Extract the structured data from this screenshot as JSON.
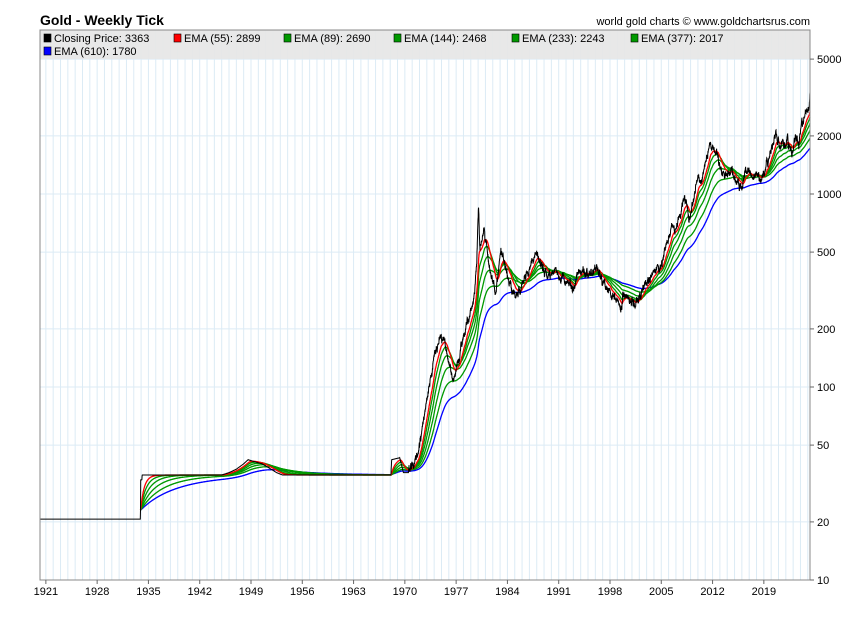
{
  "chart_data": {
    "type": "line",
    "title": "Gold - Weekly Tick",
    "credit": "world gold charts © www.goldchartsrus.com",
    "yscale": "log",
    "ylim": [
      10,
      7000
    ],
    "xlim": [
      1920.2,
      2025.3
    ],
    "grid": true,
    "legend_placement": "top",
    "y_ticks": [
      5000,
      2000,
      1000,
      500,
      200,
      100,
      50,
      20,
      10
    ],
    "x_ticks": [
      1921,
      1928,
      1935,
      1942,
      1949,
      1956,
      1963,
      1970,
      1977,
      1984,
      1991,
      1998,
      2005,
      2012,
      2019
    ],
    "legend": [
      {
        "label": "Closing Price: 3363",
        "color": "#000000"
      },
      {
        "label": "EMA (55): 2899",
        "color": "#ff0000"
      },
      {
        "label": "EMA (89): 2690",
        "color": "#009900"
      },
      {
        "label": "EMA (144): 2468",
        "color": "#009900"
      },
      {
        "label": "EMA (233): 2243",
        "color": "#009900"
      },
      {
        "label": "EMA (377): 2017",
        "color": "#009900"
      },
      {
        "label": "EMA (610): 1780",
        "color": "#0000ff"
      }
    ],
    "ema_periods": [
      55,
      89,
      144,
      233,
      377,
      610
    ],
    "ema_colors": [
      "#ff0000",
      "#009900",
      "#009900",
      "#009900",
      "#009900",
      "#0000ff"
    ],
    "ema_start_year": 1933.9,
    "closing_price_anchors": [
      [
        1920.2,
        20.67
      ],
      [
        1933.9,
        20.67
      ],
      [
        1933.95,
        33
      ],
      [
        1934.1,
        33
      ],
      [
        1934.15,
        35
      ],
      [
        1945,
        35
      ],
      [
        1946,
        36
      ],
      [
        1947,
        37.5
      ],
      [
        1948,
        40
      ],
      [
        1948.6,
        42
      ],
      [
        1949.5,
        41
      ],
      [
        1950.5,
        40
      ],
      [
        1951.5,
        38
      ],
      [
        1952.5,
        36
      ],
      [
        1953.3,
        35
      ],
      [
        1968.1,
        35
      ],
      [
        1968.2,
        42
      ],
      [
        1969.3,
        43
      ],
      [
        1969.8,
        36
      ],
      [
        1970.5,
        36
      ],
      [
        1971.4,
        41
      ],
      [
        1972.0,
        48
      ],
      [
        1972.5,
        65
      ],
      [
        1973.5,
        110
      ],
      [
        1974.1,
        150
      ],
      [
        1974.9,
        190
      ],
      [
        1975.5,
        165
      ],
      [
        1976.6,
        105
      ],
      [
        1977.5,
        150
      ],
      [
        1978.5,
        210
      ],
      [
        1979.4,
        280
      ],
      [
        1979.8,
        420
      ],
      [
        1980.05,
        850
      ],
      [
        1980.25,
        520
      ],
      [
        1980.8,
        650
      ],
      [
        1981.5,
        420
      ],
      [
        1982.4,
        310
      ],
      [
        1983.1,
        500
      ],
      [
        1984.0,
        380
      ],
      [
        1985.1,
        290
      ],
      [
        1985.9,
        330
      ],
      [
        1987.9,
        490
      ],
      [
        1988.6,
        430
      ],
      [
        1989.6,
        360
      ],
      [
        1990.6,
        410
      ],
      [
        1991.5,
        360
      ],
      [
        1993.1,
        330
      ],
      [
        1993.6,
        400
      ],
      [
        1995.0,
        380
      ],
      [
        1996.1,
        410
      ],
      [
        1997.2,
        340
      ],
      [
        1998.8,
        290
      ],
      [
        1999.6,
        255
      ],
      [
        1999.8,
        320
      ],
      [
        2001.3,
        260
      ],
      [
        2002.5,
        320
      ],
      [
        2004.0,
        410
      ],
      [
        2005.0,
        430
      ],
      [
        2006.4,
        700
      ],
      [
        2007.0,
        650
      ],
      [
        2008.2,
        980
      ],
      [
        2008.8,
        720
      ],
      [
        2009.9,
        1200
      ],
      [
        2010.5,
        1200
      ],
      [
        2011.7,
        1850
      ],
      [
        2012.5,
        1650
      ],
      [
        2013.5,
        1230
      ],
      [
        2014.5,
        1300
      ],
      [
        2015.9,
        1050
      ],
      [
        2016.5,
        1350
      ],
      [
        2018.7,
        1180
      ],
      [
        2019.7,
        1500
      ],
      [
        2020.6,
        2050
      ],
      [
        2021.2,
        1700
      ],
      [
        2022.2,
        1950
      ],
      [
        2022.8,
        1630
      ],
      [
        2023.4,
        2000
      ],
      [
        2023.8,
        1830
      ],
      [
        2024.2,
        2350
      ],
      [
        2024.8,
        2700
      ],
      [
        2025.0,
        2650
      ],
      [
        2025.3,
        3363
      ]
    ]
  }
}
